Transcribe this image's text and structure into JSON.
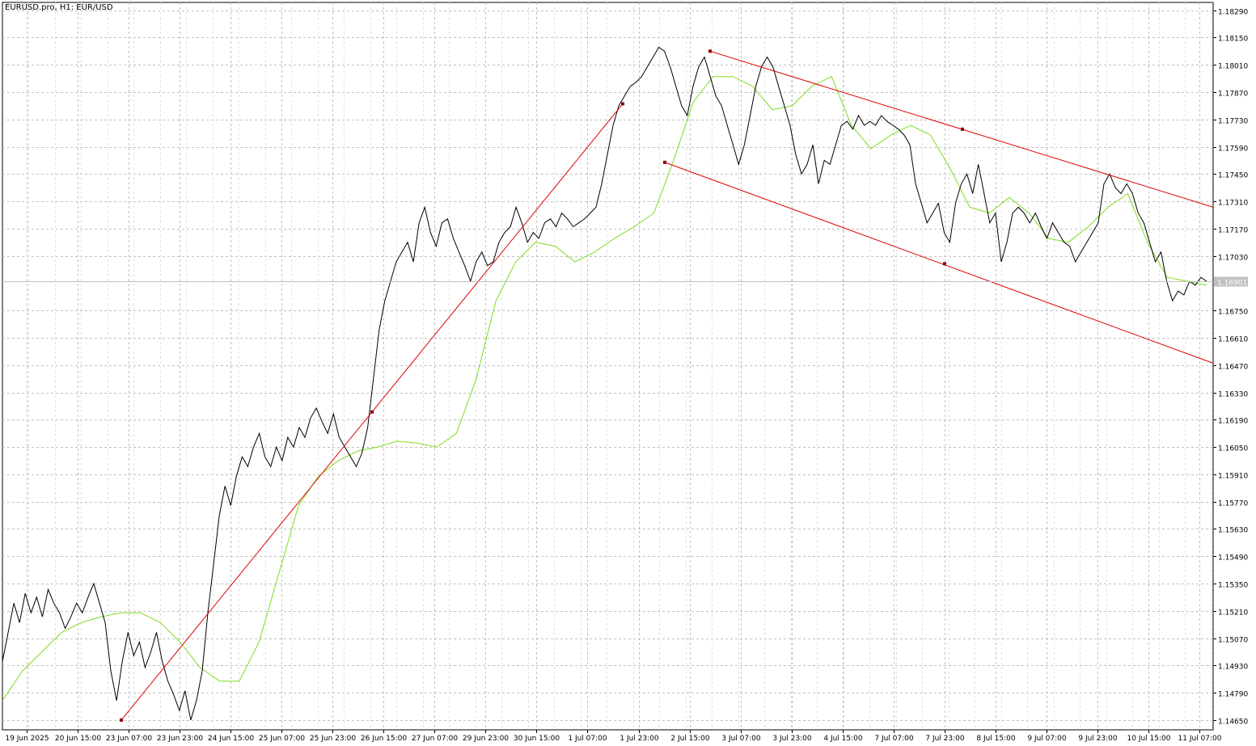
{
  "header": {
    "symbol": "EURUSD.pro, H1:  EUR/USD"
  },
  "colors": {
    "background": "#ffffff",
    "grid": "#c0c0c0",
    "price_line": "#000000",
    "moving_average": "#7fdc1e",
    "trendline": "#e00000",
    "anchor_point": "#8b0000",
    "bid_line": "#c0c0c0",
    "bid_label_bg": "#c0c0c0",
    "bid_label_text": "#ffffff"
  },
  "chart_data": {
    "type": "line",
    "symbol": "EURUSD.pro",
    "timeframe": "H1",
    "y_ticks": [
      "1.18290",
      "1.18150",
      "1.18010",
      "1.17870",
      "1.17730",
      "1.17590",
      "1.17450",
      "1.17310",
      "1.17170",
      "1.17030",
      "1.16750",
      "1.16610",
      "1.16470",
      "1.16330",
      "1.16190",
      "1.16050",
      "1.15910",
      "1.15770",
      "1.15630",
      "1.15490",
      "1.15350",
      "1.15210",
      "1.15070",
      "1.14930",
      "1.14790",
      "1.14650"
    ],
    "ylim": [
      1.146,
      1.1833
    ],
    "x_ticks": [
      "19 Jun 2025",
      "20 Jun 15:00",
      "23 Jun 07:00",
      "23 Jun 23:00",
      "24 Jun 15:00",
      "25 Jun 07:00",
      "25 Jun 23:00",
      "26 Jun 15:00",
      "27 Jun 07:00",
      "29 Jun 23:00",
      "30 Jun 15:00",
      "1 Jul 07:00",
      "1 Jul 23:00",
      "2 Jul 15:00",
      "3 Jul 07:00",
      "3 Jul 23:00",
      "4 Jul 15:00",
      "7 Jul 07:00",
      "7 Jul 23:00",
      "8 Jul 15:00",
      "9 Jul 07:00",
      "9 Jul 23:00",
      "10 Jul 15:00",
      "11 Jul 07:00"
    ],
    "current_price": "1.16901",
    "grid": true,
    "series": [
      {
        "style": "black line",
        "values": [
          1.1495,
          1.151,
          1.1525,
          1.1515,
          1.153,
          1.152,
          1.1528,
          1.1518,
          1.1532,
          1.1525,
          1.152,
          1.1512,
          1.1518,
          1.1525,
          1.152,
          1.1528,
          1.1535,
          1.1525,
          1.1515,
          1.149,
          1.1475,
          1.1495,
          1.151,
          1.1498,
          1.1505,
          1.1492,
          1.15,
          1.151,
          1.1495,
          1.1485,
          1.1478,
          1.147,
          1.148,
          1.1465,
          1.1475,
          1.149,
          1.152,
          1.1545,
          1.157,
          1.1585,
          1.1575,
          1.159,
          1.16,
          1.1595,
          1.1605,
          1.1612,
          1.16,
          1.1595,
          1.1605,
          1.1598,
          1.161,
          1.1605,
          1.1615,
          1.161,
          1.162,
          1.1625,
          1.1618,
          1.1612,
          1.1622,
          1.161,
          1.1605,
          1.16,
          1.1595,
          1.1602,
          1.1615,
          1.164,
          1.1665,
          1.168,
          1.169,
          1.17,
          1.1705,
          1.171,
          1.17,
          1.172,
          1.1728,
          1.1715,
          1.1708,
          1.172,
          1.1722,
          1.1712,
          1.1705,
          1.1698,
          1.169,
          1.17,
          1.1705,
          1.1698,
          1.17,
          1.171,
          1.1715,
          1.1718,
          1.1728,
          1.172,
          1.171,
          1.1715,
          1.1712,
          1.172,
          1.1722,
          1.1718,
          1.1725,
          1.1722,
          1.1718,
          1.172,
          1.1722,
          1.1725,
          1.1728,
          1.174,
          1.1755,
          1.177,
          1.178,
          1.1785,
          1.179,
          1.1792,
          1.1795,
          1.18,
          1.1805,
          1.181,
          1.1808,
          1.18,
          1.179,
          1.178,
          1.1775,
          1.179,
          1.18,
          1.1805,
          1.1795,
          1.1785,
          1.178,
          1.177,
          1.176,
          1.175,
          1.176,
          1.1775,
          1.179,
          1.18,
          1.1805,
          1.18,
          1.179,
          1.178,
          1.177,
          1.1755,
          1.1745,
          1.175,
          1.176,
          1.174,
          1.1752,
          1.175,
          1.176,
          1.177,
          1.1772,
          1.1768,
          1.1775,
          1.177,
          1.1772,
          1.177,
          1.1775,
          1.1772,
          1.177,
          1.1768,
          1.1765,
          1.176,
          1.174,
          1.173,
          1.172,
          1.1725,
          1.173,
          1.1715,
          1.171,
          1.173,
          1.174,
          1.1745,
          1.1735,
          1.175,
          1.1735,
          1.172,
          1.1725,
          1.17,
          1.171,
          1.1725,
          1.1728,
          1.1725,
          1.172,
          1.1725,
          1.1718,
          1.1712,
          1.172,
          1.1715,
          1.171,
          1.1708,
          1.17,
          1.1705,
          1.171,
          1.1715,
          1.172,
          1.174,
          1.1745,
          1.1738,
          1.1735,
          1.174,
          1.1735,
          1.1725,
          1.172,
          1.171,
          1.17,
          1.1705,
          1.169,
          1.168,
          1.1685,
          1.1683,
          1.169,
          1.1688,
          1.1692,
          1.169
        ],
        "style_note": "hourly close"
      },
      {
        "style": "green line (moving average)",
        "values": [
          1.1475,
          1.149,
          1.15,
          1.151,
          1.1515,
          1.1518,
          1.152,
          1.152,
          1.1515,
          1.1505,
          1.1492,
          1.1485,
          1.1485,
          1.1505,
          1.154,
          1.1575,
          1.159,
          1.1598,
          1.1603,
          1.1605,
          1.1608,
          1.1607,
          1.1605,
          1.1612,
          1.164,
          1.168,
          1.17,
          1.171,
          1.1708,
          1.17,
          1.1705,
          1.1712,
          1.1718,
          1.1725,
          1.1752,
          1.1782,
          1.1795,
          1.1795,
          1.179,
          1.1778,
          1.178,
          1.179,
          1.1795,
          1.177,
          1.1758,
          1.1765,
          1.177,
          1.1765,
          1.1748,
          1.1728,
          1.1725,
          1.1733,
          1.1725,
          1.1712,
          1.171,
          1.1718,
          1.1728,
          1.1735,
          1.171,
          1.1692,
          1.169,
          1.1688
        ]
      }
    ],
    "annotations": [
      "ascending trendline from the 23 Jun low to the 1 Jul area",
      "descending channel from 2 Jul to 11 Jul"
    ]
  }
}
